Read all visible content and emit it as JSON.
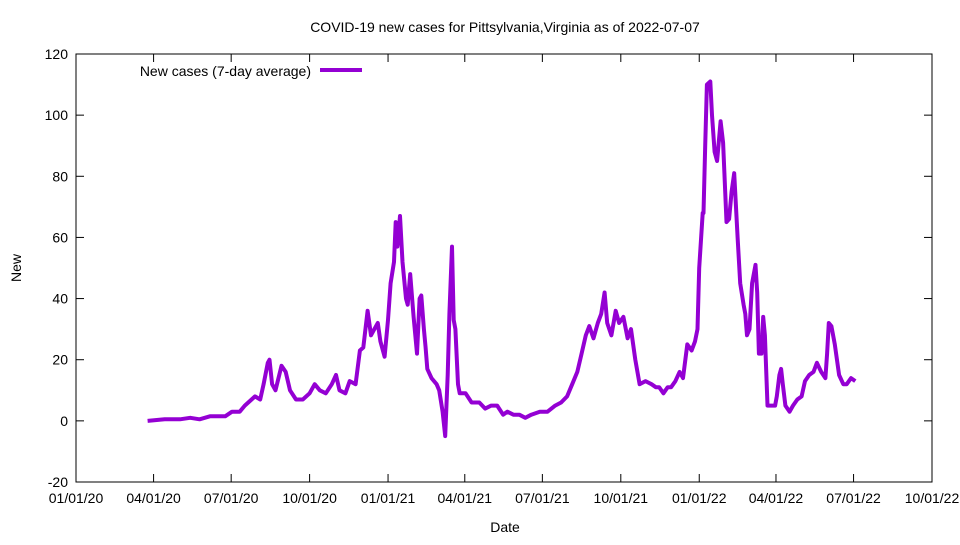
{
  "chart_data": {
    "type": "line",
    "title": "COVID-19 new cases for Pittsylvania,Virginia as of 2022-07-07",
    "xlabel": "Date",
    "ylabel": "New",
    "x_units": "days since 01/01/20",
    "xlim": [
      0,
      1004
    ],
    "ylim": [
      -20,
      120
    ],
    "yticks": [
      -20,
      0,
      20,
      40,
      60,
      80,
      100,
      120
    ],
    "xticks": [
      {
        "day": 0,
        "label": "01/01/20"
      },
      {
        "day": 91,
        "label": "04/01/20"
      },
      {
        "day": 182,
        "label": "07/01/20"
      },
      {
        "day": 274,
        "label": "10/01/20"
      },
      {
        "day": 366,
        "label": "01/01/21"
      },
      {
        "day": 456,
        "label": "04/01/21"
      },
      {
        "day": 547,
        "label": "07/01/21"
      },
      {
        "day": 639,
        "label": "10/01/21"
      },
      {
        "day": 731,
        "label": "01/01/22"
      },
      {
        "day": 821,
        "label": "04/01/22"
      },
      {
        "day": 912,
        "label": "07/01/22"
      },
      {
        "day": 1004,
        "label": "10/01/22"
      }
    ],
    "grid": false,
    "legend_position": "top-left",
    "series": [
      {
        "name": "New cases (7-day average)",
        "color": "#9400d3",
        "x": [
          84,
          104,
          122,
          134,
          145,
          157,
          175,
          183,
          192,
          198,
          210,
          216,
          220,
          225,
          227,
          230,
          234,
          241,
          246,
          251,
          258,
          266,
          274,
          280,
          286,
          293,
          300,
          305,
          309,
          316,
          321,
          328,
          333,
          337,
          342,
          346,
          350,
          354,
          357,
          362,
          366,
          369,
          373,
          375,
          377,
          380,
          383,
          387,
          389,
          392,
          396,
          400,
          403,
          405,
          408,
          410,
          412,
          417,
          423,
          426,
          430,
          433,
          436,
          438,
          441,
          443,
          445,
          448,
          450,
          457,
          464,
          473,
          480,
          487,
          494,
          501,
          506,
          513,
          520,
          527,
          534,
          544,
          553,
          562,
          569,
          576,
          582,
          588,
          593,
          598,
          602,
          607,
          612,
          616,
          620,
          623,
          628,
          633,
          637,
          642,
          647,
          651,
          656,
          661,
          668,
          675,
          680,
          684,
          689,
          694,
          698,
          703,
          708,
          712,
          717,
          722,
          726,
          729,
          731,
          735,
          736,
          738,
          740,
          744,
          746,
          749,
          752,
          756,
          759,
          763,
          766,
          769,
          772,
          776,
          779,
          783,
          785,
          787,
          790,
          793,
          797,
          799,
          801,
          804,
          806,
          808,
          811,
          815,
          820,
          822,
          825,
          827,
          829,
          832,
          837,
          841,
          846,
          851,
          855,
          860,
          865,
          869,
          874,
          879,
          881,
          883,
          886,
          890,
          895,
          900,
          904,
          909,
          914
        ],
        "y": [
          0,
          0.5,
          0.5,
          1,
          0.5,
          1.5,
          1.5,
          3,
          3,
          5,
          8,
          7,
          12,
          19,
          20,
          12,
          10,
          18,
          16,
          10,
          7,
          7,
          9,
          12,
          10,
          9,
          12,
          15,
          10,
          9,
          13,
          12,
          23,
          24,
          36,
          28,
          30,
          32,
          26,
          21,
          33,
          45,
          52,
          65,
          57,
          67,
          52,
          40,
          38,
          48,
          34,
          22,
          40,
          41,
          30,
          24,
          17,
          14,
          12,
          10,
          3,
          -5,
          15,
          35,
          57,
          33,
          30,
          12,
          9,
          9,
          6,
          6,
          4,
          5,
          5,
          2,
          3,
          2,
          2,
          1,
          2,
          3,
          3,
          5,
          6,
          8,
          12,
          16,
          22,
          28,
          31,
          27,
          32,
          35,
          42,
          32,
          28,
          36,
          32,
          34,
          27,
          30,
          20,
          12,
          13,
          12,
          11,
          11,
          9,
          11,
          11,
          13,
          16,
          14,
          25,
          23,
          26,
          30,
          50,
          68,
          68,
          90,
          110,
          111,
          100,
          88,
          85,
          98,
          91,
          65,
          66,
          75,
          81,
          60,
          45,
          38,
          35,
          28,
          30,
          45,
          51,
          42,
          22,
          22,
          34,
          28,
          5,
          5,
          5,
          8,
          15,
          17,
          12,
          5,
          3,
          5,
          7,
          8,
          13,
          15,
          16,
          19,
          16,
          14,
          22,
          32,
          31,
          25,
          15,
          12,
          12,
          14,
          13
        ]
      }
    ]
  }
}
